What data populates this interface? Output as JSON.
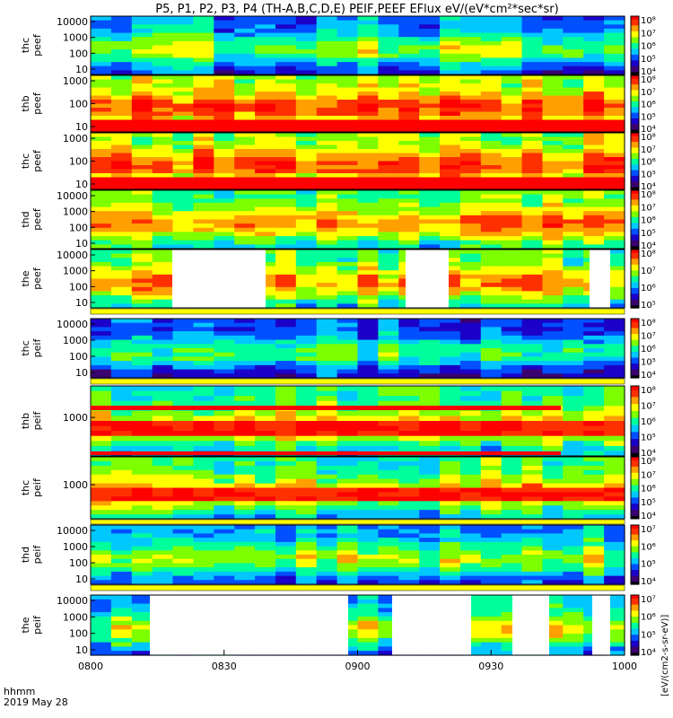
{
  "title": "P5, P1, P2, P3, P4 (TH-A,B,C,D,E) PEIF,PEEF EFlux eV/(eV*cm²*sec*sr)",
  "colorbar_label": "[eV/(cm2-s-sr-eV)]",
  "time_label_1": "hhmm",
  "time_label_2": "2019 May 28",
  "x_ticks": [
    "0800",
    "0830",
    "0900",
    "0930",
    "1000"
  ],
  "chart_data": {
    "type": "heatmap",
    "x_range": [
      "0800",
      "1000"
    ],
    "panels": [
      {
        "probe": "thc",
        "product": "peef",
        "label_top": "thc",
        "label_bottom": "peef",
        "y_ticks": [
          "10",
          "100",
          "1000",
          "10000"
        ],
        "cbar_ticks": [
          "10⁴",
          "10⁵",
          "10⁶",
          "10⁷",
          "10⁸"
        ]
      },
      {
        "probe": "thb",
        "product": "peef",
        "label_top": "thb",
        "label_bottom": "peef",
        "y_ticks": [
          "10",
          "100",
          "1000"
        ],
        "cbar_ticks": [
          "10⁴",
          "10⁵",
          "10⁶",
          "10⁷",
          "10⁸"
        ]
      },
      {
        "probe": "thc",
        "product": "peef",
        "label_top": "thc",
        "label_bottom": "peef",
        "y_ticks": [
          "10",
          "100",
          "1000"
        ],
        "cbar_ticks": [
          "10⁴",
          "10⁵",
          "10⁶",
          "10⁷",
          "10⁸"
        ]
      },
      {
        "probe": "thd",
        "product": "peef",
        "label_top": "thd",
        "label_bottom": "peef",
        "y_ticks": [
          "10",
          "100",
          "1000",
          "10000"
        ],
        "cbar_ticks": [
          "10⁴",
          "10⁵",
          "10⁶",
          "10⁷",
          "10⁸"
        ]
      },
      {
        "probe": "the",
        "product": "peef",
        "label_top": "the",
        "label_bottom": "peef",
        "y_ticks": [
          "10",
          "100",
          "1000",
          "10000"
        ],
        "cbar_ticks": [
          "10⁵",
          "10⁶",
          "10⁷",
          "10⁸"
        ]
      },
      {
        "probe": "thc",
        "product": "peif",
        "label_top": "thc",
        "label_bottom": "peif",
        "y_ticks": [
          "10",
          "100",
          "1000",
          "10000"
        ],
        "cbar_ticks": [
          "10⁴",
          "10⁵",
          "10⁶",
          "10⁷",
          "10⁸"
        ]
      },
      {
        "probe": "thb",
        "product": "peif",
        "label_top": "thb",
        "label_bottom": "peif",
        "y_ticks": [
          "1000"
        ],
        "cbar_ticks": [
          "10⁴",
          "10⁵",
          "10⁶",
          "10⁷",
          "10⁸"
        ]
      },
      {
        "probe": "thc",
        "product": "peif",
        "label_top": "thc",
        "label_bottom": "peif",
        "y_ticks": [
          "1000"
        ],
        "cbar_ticks": [
          "10⁴",
          "10⁵",
          "10⁶",
          "10⁷",
          "10⁸"
        ]
      },
      {
        "probe": "thd",
        "product": "peif",
        "label_top": "thd",
        "label_bottom": "peif",
        "y_ticks": [
          "10",
          "100",
          "1000",
          "10000"
        ],
        "cbar_ticks": [
          "10⁴",
          "10⁵",
          "10⁶",
          "10⁷"
        ]
      },
      {
        "probe": "the",
        "product": "peif",
        "label_top": "the",
        "label_bottom": "peif",
        "y_ticks": [
          "10",
          "100",
          "1000",
          "10000"
        ],
        "cbar_ticks": [
          "10⁴",
          "10⁵",
          "10⁶",
          "10⁷"
        ]
      }
    ],
    "colormap": [
      "#000000",
      "#3b0070",
      "#1b00c8",
      "#0050ff",
      "#00c8ff",
      "#00ff9a",
      "#7dff00",
      "#ffff00",
      "#ffa000",
      "#ff3000",
      "#ff0000"
    ]
  }
}
